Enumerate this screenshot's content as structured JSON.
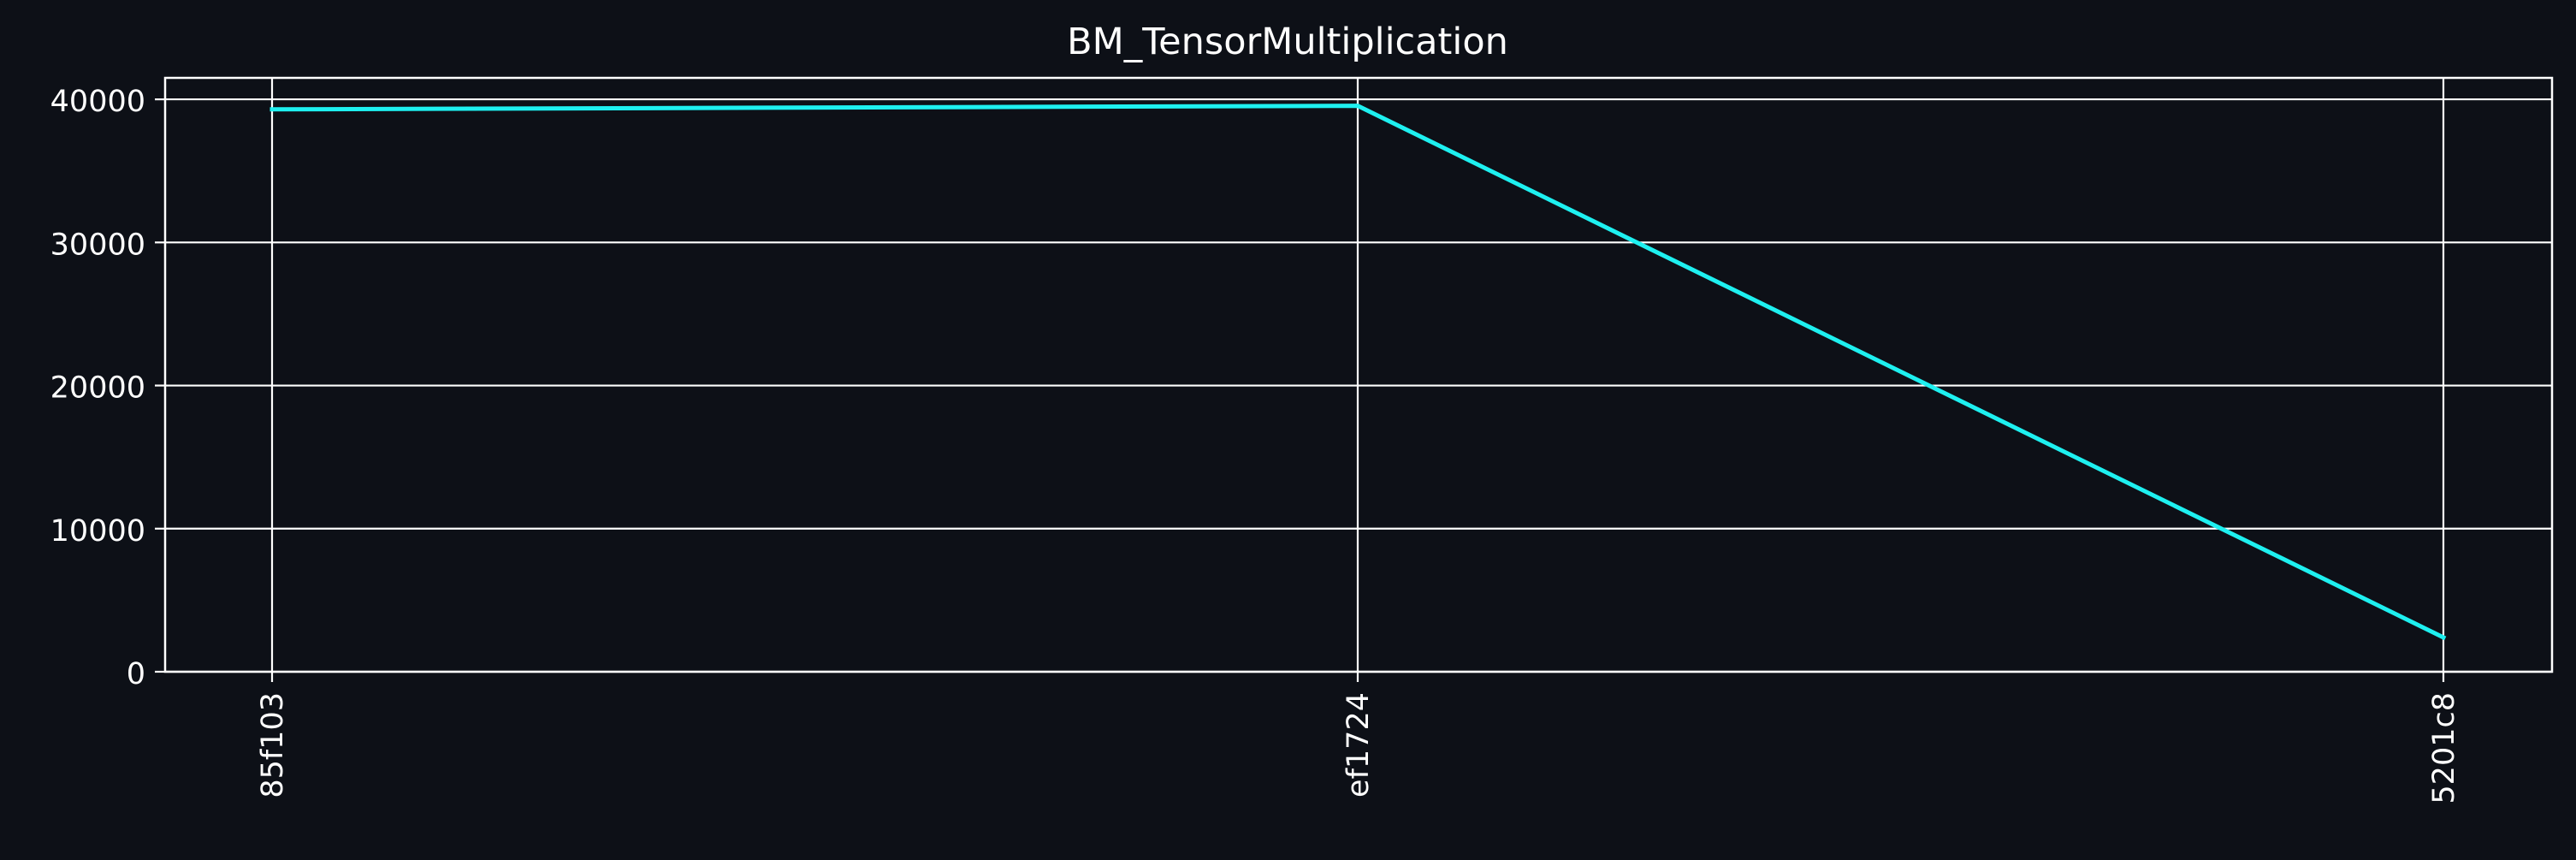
{
  "chart_data": {
    "type": "line",
    "title": "BM_TensorMultiplication",
    "xlabel": "",
    "ylabel": "",
    "categories": [
      "85f103",
      "ef1724",
      "5201c8"
    ],
    "series": [
      {
        "values": [
          39300,
          39550,
          2400
        ],
        "color": "#1ef0f0"
      }
    ],
    "ylim": [
      0,
      41500
    ],
    "yticks": [
      0,
      10000,
      20000,
      30000,
      40000
    ],
    "ytick_labels": [
      "0",
      "10000",
      "20000",
      "30000",
      "40000"
    ],
    "grid": true,
    "legend": "none"
  },
  "colors": {
    "background": "#0d1017",
    "foreground": "#ffffff",
    "line": "#1ef0f0"
  }
}
